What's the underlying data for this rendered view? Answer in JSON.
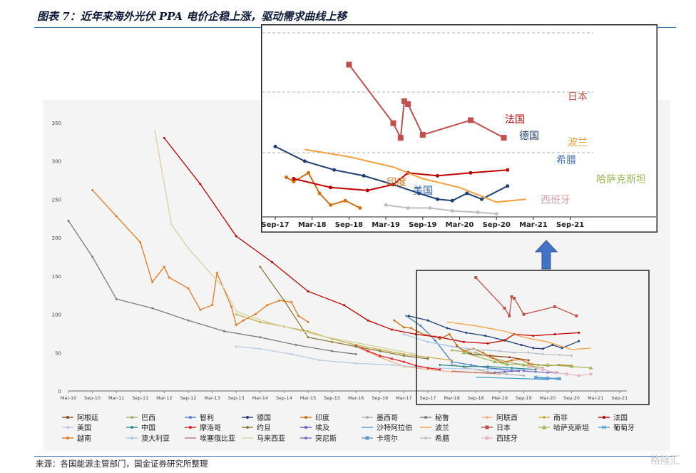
{
  "title": "图表 7：近年来海外光伏 PPA 电价企稳上涨，驱动需求曲线上移",
  "source": "来源：各国能源主管部门，国金证券研究所整理",
  "watermark": "格隆汇",
  "chart_data": {
    "type": "line",
    "title": "",
    "xlabel": "",
    "ylabel": "",
    "ylim": [
      0,
      350
    ],
    "yticks": [
      0,
      50,
      100,
      150,
      200,
      250,
      300,
      350
    ],
    "x_ticks": [
      "Mar-10",
      "Sep-10",
      "Mar-11",
      "Sep-11",
      "Mar-12",
      "Sep-12",
      "Mar-13",
      "Sep-13",
      "Mar-14",
      "Sep-14",
      "Mar-15",
      "Sep-15",
      "Mar-16",
      "Sep-16",
      "Mar-17",
      "Sep-17",
      "Mar-18",
      "Sep-18",
      "Mar-19",
      "Sep-19",
      "Mar-20",
      "Sep-20",
      "Mar-21",
      "Sep-21"
    ],
    "legend_position": "bottom",
    "series": [
      {
        "name": "阿根廷",
        "color": "#8b4513",
        "marker": "circle",
        "points": [
          [
            16.2,
            58
          ],
          [
            16.8,
            48
          ],
          [
            17.6,
            46
          ],
          [
            18.4,
            44
          ],
          [
            19.2,
            40
          ]
        ]
      },
      {
        "name": "巴西",
        "color": "#a8b070",
        "marker": "circle",
        "points": [
          [
            16.0,
            53
          ],
          [
            17.0,
            50
          ],
          [
            17.6,
            44
          ],
          [
            18.3,
            38
          ],
          [
            19.2,
            33
          ],
          [
            19.8,
            30
          ]
        ]
      },
      {
        "name": "智利",
        "color": "#4a7fc8",
        "marker": "circle",
        "points": [
          [
            14.1,
            98
          ],
          [
            14.7,
            85
          ],
          [
            15.3,
            66
          ],
          [
            16.0,
            38
          ],
          [
            16.8,
            34
          ],
          [
            17.5,
            30
          ],
          [
            18.3,
            28
          ],
          [
            19.0,
            27
          ]
        ]
      },
      {
        "name": "德国",
        "color": "#1f3e75",
        "marker": "circle",
        "points": [
          [
            14.2,
            98
          ],
          [
            15.0,
            92
          ],
          [
            15.8,
            82
          ],
          [
            16.6,
            76
          ],
          [
            17.4,
            72
          ],
          [
            18.2,
            66
          ],
          [
            18.9,
            60
          ],
          [
            19.4,
            56
          ],
          [
            19.8,
            55
          ],
          [
            20.2,
            60
          ],
          [
            20.6,
            56
          ],
          [
            21.3,
            65
          ]
        ]
      },
      {
        "name": "印度",
        "color": "#d07010",
        "marker": "circle",
        "points": [
          [
            13.6,
            92
          ],
          [
            14.0,
            83
          ],
          [
            14.3,
            82
          ],
          [
            14.6,
            77
          ],
          [
            14.9,
            73
          ],
          [
            15.3,
            71
          ],
          [
            15.5,
            68
          ],
          [
            15.9,
            74
          ],
          [
            16.2,
            60
          ],
          [
            16.5,
            52
          ],
          [
            16.9,
            55
          ],
          [
            17.3,
            50
          ],
          [
            17.7,
            43
          ],
          [
            18.1,
            37
          ],
          [
            18.5,
            40
          ],
          [
            18.9,
            41
          ],
          [
            19.2,
            36
          ],
          [
            19.6,
            34
          ],
          [
            20.0,
            33
          ],
          [
            20.5,
            34
          ],
          [
            21.0,
            33
          ]
        ]
      },
      {
        "name": "墨西哥",
        "color": "#b0b0b0",
        "marker": "circle",
        "points": [
          [
            16.0,
            35
          ],
          [
            16.6,
            30
          ],
          [
            17.5,
            25
          ],
          [
            18.3,
            22
          ],
          [
            19.0,
            20
          ]
        ]
      },
      {
        "name": "秘鲁",
        "color": "#7a7a7a",
        "marker": "circle",
        "points": [
          [
            0.0,
            222
          ],
          [
            1.0,
            175
          ],
          [
            2.0,
            120
          ],
          [
            3.5,
            108
          ],
          [
            5.0,
            92
          ],
          [
            6.5,
            78
          ],
          [
            8.0,
            70
          ],
          [
            9.5,
            60
          ],
          [
            11.0,
            52
          ],
          [
            12.0,
            48
          ]
        ]
      },
      {
        "name": "阿联酋",
        "color": "#f4b183",
        "marker": "circle",
        "points": [
          [
            12.0,
            58
          ],
          [
            13.0,
            44
          ],
          [
            14.0,
            32
          ],
          [
            15.0,
            28
          ],
          [
            16.0,
            25
          ],
          [
            17.0,
            24
          ],
          [
            18.0,
            22
          ]
        ]
      },
      {
        "name": "南非",
        "color": "#c8b046",
        "marker": "circle",
        "points": [
          [
            7.0,
            100
          ],
          [
            8.0,
            90
          ],
          [
            9.0,
            84
          ],
          [
            10.0,
            78
          ],
          [
            11.0,
            68
          ],
          [
            12.0,
            60
          ],
          [
            13.0,
            54
          ],
          [
            14.0,
            48
          ],
          [
            15.0,
            44
          ],
          [
            16.0,
            40
          ]
        ]
      },
      {
        "name": "法国",
        "color": "#c00000",
        "marker": "circle",
        "points": [
          [
            4.0,
            330
          ],
          [
            5.5,
            270
          ],
          [
            7.0,
            202
          ],
          [
            8.5,
            168
          ],
          [
            10.0,
            130
          ],
          [
            11.5,
            112
          ],
          [
            12.5,
            92
          ],
          [
            13.5,
            80
          ],
          [
            14.5,
            74
          ],
          [
            15.5,
            70
          ],
          [
            16.5,
            64
          ],
          [
            17.5,
            62
          ],
          [
            18.2,
            66
          ],
          [
            18.6,
            74
          ],
          [
            19.4,
            72
          ],
          [
            20.3,
            74
          ],
          [
            21.3,
            76
          ]
        ]
      },
      {
        "name": "美国",
        "color": "#b8cce4",
        "marker": "circle",
        "points": [
          [
            7.0,
            58
          ],
          [
            8.0,
            55
          ],
          [
            9.3,
            48
          ],
          [
            10.5,
            40
          ],
          [
            12.0,
            36
          ],
          [
            13.5,
            34
          ],
          [
            15.0,
            30
          ],
          [
            16.5,
            29
          ],
          [
            17.5,
            28
          ],
          [
            18.3,
            27
          ],
          [
            19.0,
            28
          ]
        ]
      },
      {
        "name": "中国",
        "color": "#2e8b8b",
        "marker": "circle",
        "points": [
          [
            15.5,
            34
          ],
          [
            16.5,
            32
          ],
          [
            17.5,
            32
          ],
          [
            18.5,
            30
          ],
          [
            19.5,
            28
          ]
        ]
      },
      {
        "name": "摩洛哥",
        "color": "#e31c23",
        "marker": "circle",
        "points": [
          [
            12.0,
            59
          ],
          [
            12.5,
            52
          ],
          [
            13.0,
            46
          ],
          [
            13.5,
            42
          ],
          [
            14.0,
            38
          ],
          [
            14.5,
            33
          ],
          [
            15.0,
            30
          ],
          [
            15.5,
            28
          ]
        ]
      },
      {
        "name": "约旦",
        "color": "#8a7a3a",
        "marker": "circle",
        "points": [
          [
            8.0,
            162
          ],
          [
            9.0,
            118
          ],
          [
            10.0,
            70
          ],
          [
            11.0,
            64
          ],
          [
            12.0,
            58
          ],
          [
            13.0,
            52
          ],
          [
            14.0,
            46
          ],
          [
            15.0,
            42
          ]
        ]
      },
      {
        "name": "埃及",
        "color": "#6a5acd",
        "marker": "circle",
        "points": [
          [
            17.8,
            24
          ],
          [
            18.2,
            25
          ],
          [
            18.5,
            26
          ],
          [
            18.8,
            26
          ]
        ]
      },
      {
        "name": "沙特阿拉伯",
        "color": "#4aa5c8",
        "marker": "none",
        "points": [
          [
            17.0,
            18
          ],
          [
            18.0,
            17
          ],
          [
            19.0,
            16
          ],
          [
            20.0,
            15
          ]
        ]
      },
      {
        "name": "波兰",
        "color": "#f4a040",
        "marker": "none",
        "points": [
          [
            15.8,
            90
          ],
          [
            17.0,
            85
          ],
          [
            18.2,
            78
          ],
          [
            19.0,
            70
          ],
          [
            20.0,
            64
          ],
          [
            21.0,
            54
          ],
          [
            21.8,
            56
          ]
        ]
      },
      {
        "name": "日本",
        "color": "#c0504d",
        "marker": "square",
        "points": [
          [
            17.0,
            148
          ],
          [
            18.2,
            108
          ],
          [
            18.4,
            98
          ],
          [
            18.5,
            123
          ],
          [
            18.6,
            121
          ],
          [
            19.0,
            100
          ],
          [
            20.3,
            110
          ],
          [
            21.2,
            98
          ]
        ]
      },
      {
        "name": "哈萨克斯坦",
        "color": "#9bbb59",
        "marker": "triangle",
        "points": [
          [
            16.5,
            50
          ],
          [
            17.8,
            38
          ],
          [
            18.3,
            35
          ],
          [
            19.0,
            34
          ],
          [
            20.0,
            34
          ],
          [
            21.0,
            32
          ],
          [
            21.8,
            30
          ]
        ]
      },
      {
        "name": "葡萄牙",
        "color": "#4a9fd0",
        "marker": "x",
        "points": [
          [
            19.5,
            18
          ],
          [
            20.0,
            17
          ],
          [
            20.4,
            16
          ]
        ]
      },
      {
        "name": "越南",
        "color": "#e87722",
        "marker": "circle",
        "points": [
          [
            1.0,
            262
          ],
          [
            2.0,
            228
          ],
          [
            3.0,
            194
          ],
          [
            3.5,
            142
          ],
          [
            4.0,
            162
          ],
          [
            4.2,
            148
          ],
          [
            5.0,
            134
          ],
          [
            5.5,
            106
          ],
          [
            6.0,
            112
          ],
          [
            6.2,
            154
          ],
          [
            6.8,
            110
          ],
          [
            7.0,
            86
          ],
          [
            7.3,
            92
          ],
          [
            7.8,
            100
          ],
          [
            8.3,
            112
          ],
          [
            8.8,
            118
          ],
          [
            9.3,
            116
          ],
          [
            9.6,
            98
          ],
          [
            10.0,
            90
          ]
        ]
      },
      {
        "name": "澳大利亚",
        "color": "#a9c4e8",
        "marker": "circle",
        "points": [
          [
            14.0,
            74
          ],
          [
            15.0,
            64
          ],
          [
            16.0,
            58
          ],
          [
            17.0,
            54
          ],
          [
            18.0,
            52
          ],
          [
            18.6,
            50
          ]
        ]
      },
      {
        "name": "埃塞俄比亚",
        "color": "#c07070",
        "marker": "none",
        "points": [
          [
            16.0,
            26
          ],
          [
            17.0,
            24
          ],
          [
            17.8,
            23
          ]
        ]
      },
      {
        "name": "马来西亚",
        "color": "#d6d0a0",
        "marker": "none",
        "points": [
          [
            3.6,
            340
          ],
          [
            4.3,
            217
          ],
          [
            5.0,
            186
          ],
          [
            5.8,
            158
          ],
          [
            6.5,
            134
          ],
          [
            7.0,
            104
          ],
          [
            7.5,
            98
          ],
          [
            8.5,
            88
          ],
          [
            9.5,
            80
          ],
          [
            10.5,
            72
          ],
          [
            11.5,
            66
          ],
          [
            12.5,
            60
          ],
          [
            13.5,
            54
          ],
          [
            14.5,
            48
          ]
        ]
      },
      {
        "name": "突尼斯",
        "color": "#7b68c8",
        "marker": "circle",
        "points": [
          [
            19.0,
            26
          ],
          [
            19.5,
            25
          ],
          [
            20.0,
            24
          ],
          [
            20.4,
            24
          ]
        ]
      },
      {
        "name": "卡塔尔",
        "color": "#5b9bd5",
        "marker": "square",
        "points": [
          [
            19.5,
            17
          ],
          [
            20.0,
            16
          ],
          [
            20.5,
            16
          ]
        ]
      },
      {
        "name": "希腊",
        "color": "#bfbfbf",
        "marker": "circle",
        "points": [
          [
            18.0,
            52
          ],
          [
            18.6,
            50
          ],
          [
            19.2,
            50
          ],
          [
            19.8,
            48
          ],
          [
            20.5,
            47
          ],
          [
            21.0,
            46
          ]
        ]
      },
      {
        "name": "西班牙",
        "color": "#e6b8c4",
        "marker": "square",
        "points": [
          [
            19.2,
            32
          ],
          [
            19.8,
            28
          ],
          [
            20.3,
            24
          ],
          [
            20.8,
            22
          ],
          [
            21.3,
            20
          ],
          [
            21.8,
            22
          ]
        ]
      }
    ],
    "inset": {
      "x_ticks": [
        "Sep-17",
        "Mar-18",
        "Sep-18",
        "Mar-19",
        "Sep-19",
        "Mar-20",
        "Sep-20",
        "Mar-21",
        "Sep-21"
      ],
      "labels": [
        {
          "text": "日本",
          "color": "#c0504d"
        },
        {
          "text": "法国",
          "color": "#c00000"
        },
        {
          "text": "德国",
          "color": "#1f3e75"
        },
        {
          "text": "波兰",
          "color": "#f4a040"
        },
        {
          "text": "希腊",
          "color": "#4472c4"
        },
        {
          "text": "哈萨克斯坦",
          "color": "#9bbb59"
        },
        {
          "text": "印度",
          "color": "#d07010"
        },
        {
          "text": "美国",
          "color": "#2e5ea8"
        },
        {
          "text": "西班牙",
          "color": "#d9a0a8"
        }
      ]
    }
  }
}
